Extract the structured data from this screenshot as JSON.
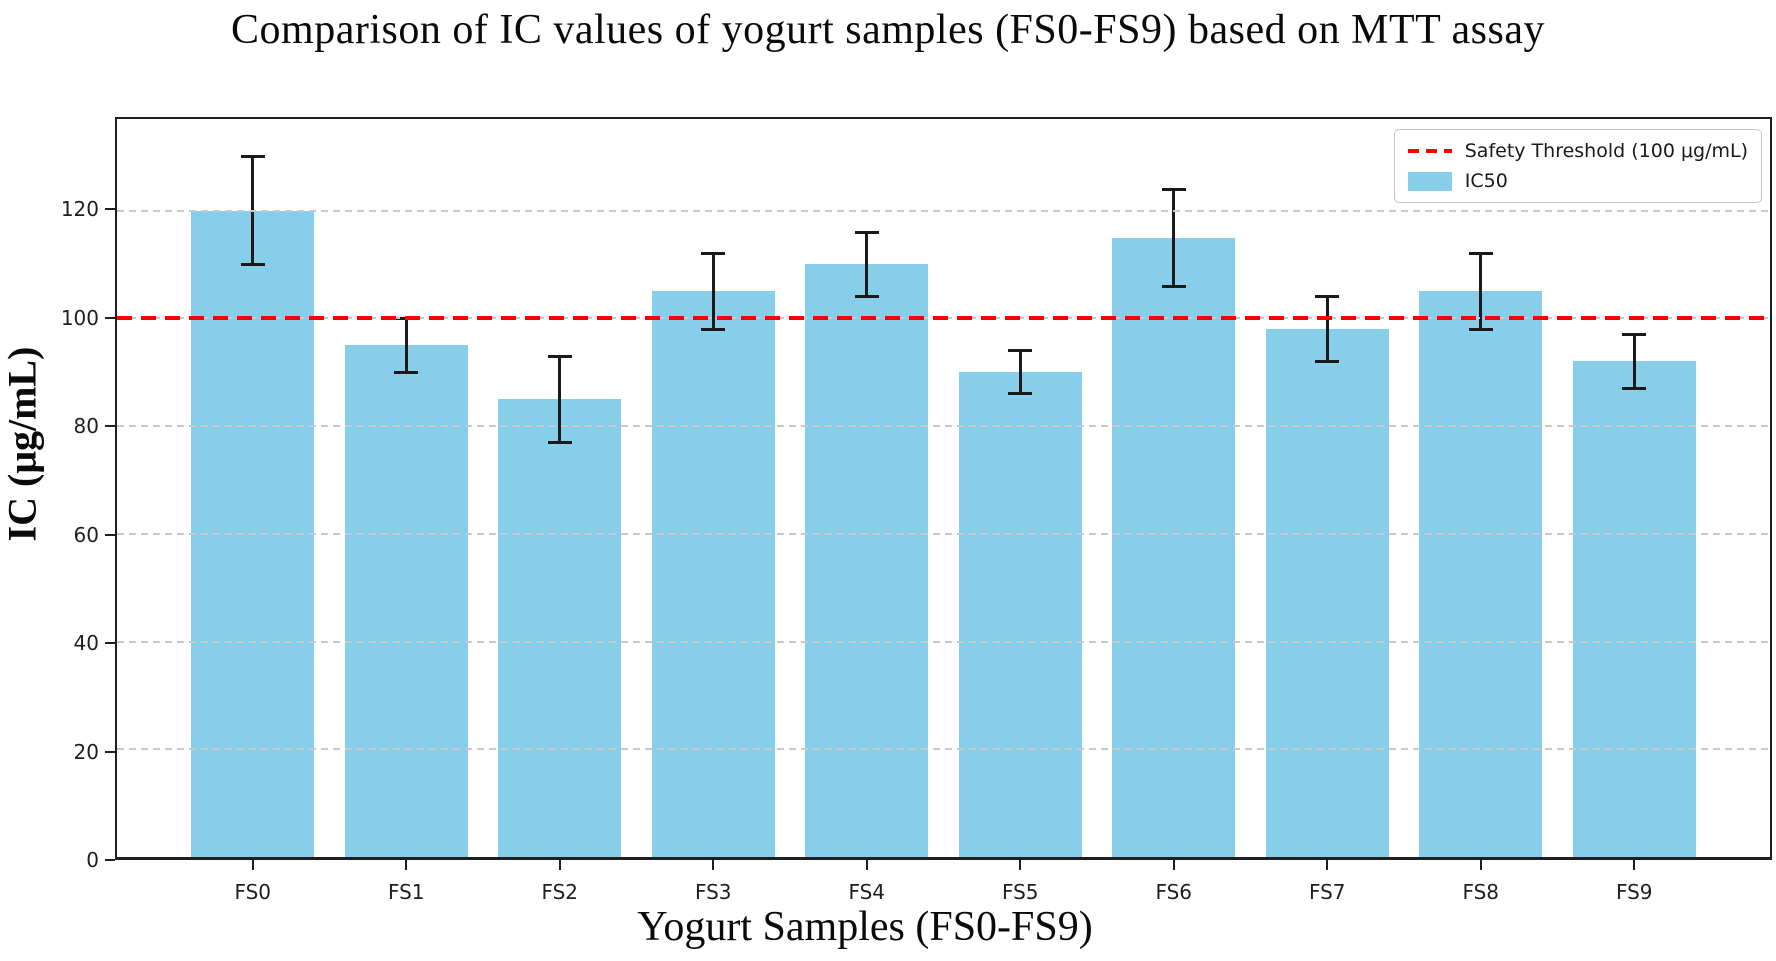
{
  "chart_data": {
    "type": "bar",
    "title": "Comparison of IC values of yogurt samples (FS0-FS9) based on MTT assay",
    "xlabel": "Yogurt Samples (FS0-FS9)",
    "ylabel": "IC (μg/mL)",
    "categories": [
      "FS0",
      "FS1",
      "FS2",
      "FS3",
      "FS4",
      "FS5",
      "FS6",
      "FS7",
      "FS8",
      "FS9"
    ],
    "series": [
      {
        "name": "IC50",
        "values": [
          120,
          95,
          85,
          105,
          110,
          90,
          115,
          98,
          105,
          92
        ],
        "error_low": [
          110,
          90,
          77,
          98,
          104,
          86,
          106,
          92,
          98,
          87
        ],
        "error_high": [
          130,
          100,
          93,
          112,
          116,
          94,
          124,
          104,
          112,
          97
        ],
        "color": "#87CEEB"
      }
    ],
    "threshold": {
      "label": "Safety Threshold (100 μg/mL)",
      "value": 100,
      "color": "#ff0000",
      "style": "dashed"
    },
    "legend": [
      "Safety Threshold (100 μg/mL)",
      "IC50"
    ],
    "legend_position": "upper-right",
    "yticks": [
      0,
      20,
      40,
      60,
      80,
      100,
      120
    ],
    "ylim": [
      0,
      137
    ],
    "grid": "horizontal dashed"
  },
  "colors": {
    "bar": "#87CEEB",
    "threshold": "#ff0000",
    "grid": "#c9c9c9",
    "axis": "#1f1f1f",
    "text": "#0a0a0a"
  }
}
